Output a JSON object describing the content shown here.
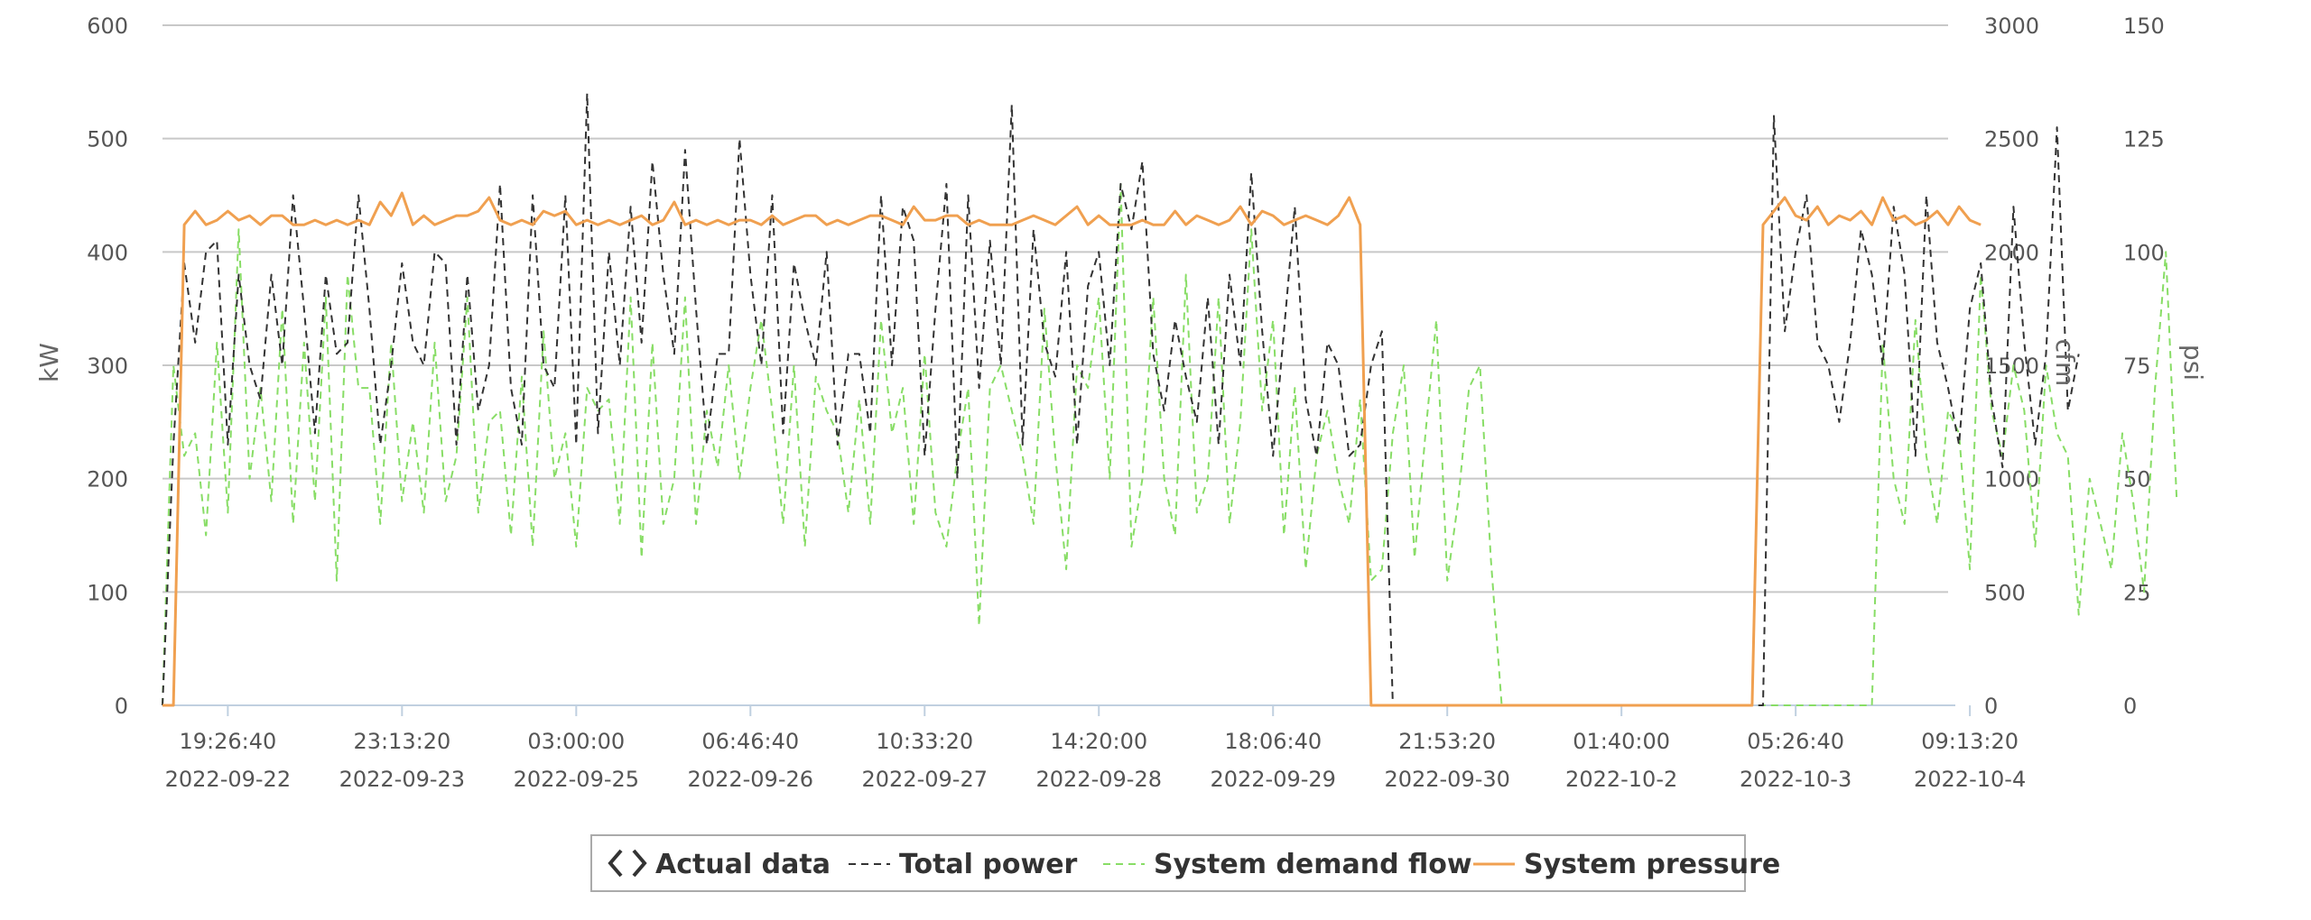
{
  "legend": {
    "actual_icon": "chevron-pair-icon",
    "actual_label": "Actual data",
    "power_label": "Total power",
    "flow_label": "System demand flow",
    "pressure_label": "System pressure"
  },
  "colors": {
    "grid": "#c8c8c8",
    "axis": "#c0d0e0",
    "power": "#333333",
    "flow": "#88dd66",
    "pressure": "#f0a050"
  },
  "chart_data": {
    "type": "line",
    "grid": true,
    "legend_position": "bottom-center",
    "x_range": [
      0,
      82
    ],
    "x_ticks": [
      {
        "x": 3,
        "time": "19:26:40",
        "date": "2022-09-22"
      },
      {
        "x": 11,
        "time": "23:13:20",
        "date": "2022-09-23"
      },
      {
        "x": 19,
        "time": "03:00:00",
        "date": "2022-09-25"
      },
      {
        "x": 27,
        "time": "06:46:40",
        "date": "2022-09-26"
      },
      {
        "x": 35,
        "time": "10:33:20",
        "date": "2022-09-27"
      },
      {
        "x": 43,
        "time": "14:20:00",
        "date": "2022-09-28"
      },
      {
        "x": 51,
        "time": "18:06:40",
        "date": "2022-09-29"
      },
      {
        "x": 59,
        "time": "21:53:20",
        "date": "2022-09-30"
      },
      {
        "x": 67,
        "time": "01:40:00",
        "date": "2022-10-2"
      },
      {
        "x": 75,
        "time": "05:26:40",
        "date": "2022-10-3"
      },
      {
        "x": 83,
        "time": "09:13:20",
        "date": "2022-10-4"
      }
    ],
    "axes": [
      {
        "id": "kw",
        "label": "kW",
        "side": "left",
        "ylim": [
          0,
          600
        ],
        "ticks": [
          "0",
          "100",
          "200",
          "300",
          "400",
          "500",
          "600"
        ]
      },
      {
        "id": "cfm",
        "label": "cfm",
        "side": "right",
        "ylim": [
          0,
          3000
        ],
        "ticks": [
          "0",
          "500",
          "1000",
          "1500",
          "2000",
          "2500",
          "3000"
        ]
      },
      {
        "id": "psi",
        "label": "psi",
        "side": "right",
        "ylim": [
          0,
          150
        ],
        "ticks": [
          "0",
          "25",
          "50",
          "75",
          "100",
          "125",
          "150"
        ]
      }
    ],
    "series": [
      {
        "name": "Total power",
        "axis": "kw",
        "style": "dashed",
        "x_start": 0,
        "x_step": 0.5,
        "values": [
          0,
          230,
          390,
          320,
          400,
          410,
          230,
          380,
          300,
          270,
          380,
          300,
          450,
          350,
          240,
          380,
          310,
          320,
          450,
          350,
          230,
          300,
          390,
          320,
          300,
          400,
          390,
          230,
          380,
          260,
          300,
          460,
          280,
          230,
          450,
          300,
          280,
          450,
          230,
          540,
          240,
          400,
          300,
          440,
          320,
          480,
          380,
          310,
          490,
          350,
          230,
          310,
          310,
          500,
          380,
          300,
          450,
          240,
          390,
          340,
          300,
          400,
          230,
          310,
          310,
          240,
          450,
          300,
          440,
          410,
          220,
          350,
          460,
          200,
          450,
          280,
          410,
          300,
          530,
          230,
          420,
          320,
          290,
          400,
          230,
          370,
          400,
          300,
          460,
          420,
          480,
          310,
          260,
          340,
          290,
          250,
          360,
          230,
          380,
          300,
          470,
          330,
          220,
          330,
          440,
          270,
          220,
          320,
          300,
          220,
          230,
          300,
          330,
          0,
          0,
          0,
          0,
          0,
          0,
          0,
          0,
          0,
          0,
          0,
          0,
          0,
          0,
          0,
          0,
          0,
          0,
          0,
          0,
          0,
          0,
          0,
          0,
          0,
          0,
          0,
          0,
          0,
          0,
          0,
          0,
          0,
          0,
          0,
          520,
          330,
          400,
          450,
          320,
          300,
          250,
          320,
          420,
          380,
          300,
          440,
          380,
          220,
          450,
          320,
          280,
          230,
          350,
          390,
          270,
          210,
          440,
          320,
          230,
          310,
          510,
          260,
          310
        ]
      },
      {
        "name": "System demand flow",
        "axis": "cfm",
        "style": "dashed",
        "x_start": 0,
        "x_step": 0.5,
        "values": [
          0,
          1500,
          1100,
          1200,
          750,
          1600,
          850,
          2100,
          1000,
          1400,
          900,
          1750,
          800,
          1600,
          900,
          1800,
          550,
          1900,
          1400,
          1400,
          800,
          1600,
          900,
          1250,
          850,
          1600,
          900,
          1100,
          1800,
          850,
          1250,
          1300,
          750,
          1450,
          700,
          1650,
          1000,
          1200,
          700,
          1400,
          1300,
          1350,
          800,
          1800,
          650,
          1600,
          800,
          1000,
          1800,
          800,
          1300,
          1050,
          1500,
          1000,
          1400,
          1700,
          1300,
          800,
          1500,
          700,
          1450,
          1300,
          1200,
          850,
          1350,
          800,
          1700,
          1200,
          1400,
          800,
          1550,
          850,
          700,
          1100,
          1400,
          350,
          1400,
          1500,
          1300,
          1100,
          800,
          1750,
          1100,
          600,
          1500,
          1400,
          1800,
          1000,
          2300,
          700,
          1000,
          1800,
          1000,
          750,
          1900,
          850,
          1000,
          1800,
          800,
          1250,
          2100,
          1300,
          1700,
          750,
          1400,
          600,
          1100,
          1300,
          1000,
          800,
          1350,
          550,
          600,
          1200,
          1500,
          650,
          1200,
          1700,
          550,
          900,
          1400,
          1500,
          650,
          0,
          0,
          0,
          0,
          0,
          0,
          0,
          0,
          0,
          0,
          0,
          0,
          0,
          0,
          0,
          0,
          0,
          0,
          0,
          0,
          0,
          0,
          0,
          0,
          0,
          0,
          0,
          0,
          0,
          0,
          0,
          0,
          0,
          0,
          0,
          1600,
          1000,
          800,
          1700,
          1100,
          800,
          1300,
          1200,
          600,
          1900,
          1300,
          1100,
          1500,
          1300,
          700,
          1500,
          1200,
          1100,
          400,
          1000,
          800,
          600,
          1200,
          900,
          500,
          1400,
          2000,
          900
        ]
      },
      {
        "name": "System pressure",
        "axis": "psi",
        "style": "solid",
        "x_start": 0,
        "x_step": 0.5,
        "values": [
          0,
          0,
          106,
          109,
          106,
          107,
          109,
          107,
          108,
          106,
          108,
          108,
          106,
          106,
          107,
          106,
          107,
          106,
          107,
          106,
          111,
          108,
          113,
          106,
          108,
          106,
          107,
          108,
          108,
          109,
          112,
          107,
          106,
          107,
          106,
          109,
          108,
          109,
          106,
          107,
          106,
          107,
          106,
          107,
          108,
          106,
          107,
          111,
          106,
          107,
          106,
          107,
          106,
          107,
          107,
          106,
          108,
          106,
          107,
          108,
          108,
          106,
          107,
          106,
          107,
          108,
          108,
          107,
          106,
          110,
          107,
          107,
          108,
          108,
          106,
          107,
          106,
          106,
          106,
          107,
          108,
          107,
          106,
          108,
          110,
          106,
          108,
          106,
          106,
          106,
          107,
          106,
          106,
          109,
          106,
          108,
          107,
          106,
          107,
          110,
          106,
          109,
          108,
          106,
          107,
          108,
          107,
          106,
          108,
          112,
          106,
          0,
          0,
          0,
          0,
          0,
          0,
          0,
          0,
          0,
          0,
          0,
          0,
          0,
          0,
          0,
          0,
          0,
          0,
          0,
          0,
          0,
          0,
          0,
          0,
          0,
          0,
          0,
          0,
          0,
          0,
          0,
          0,
          0,
          0,
          0,
          0,
          106,
          109,
          112,
          108,
          107,
          110,
          106,
          108,
          107,
          109,
          106,
          112,
          107,
          108,
          106,
          107,
          109,
          106,
          110,
          107,
          106
        ]
      }
    ]
  }
}
